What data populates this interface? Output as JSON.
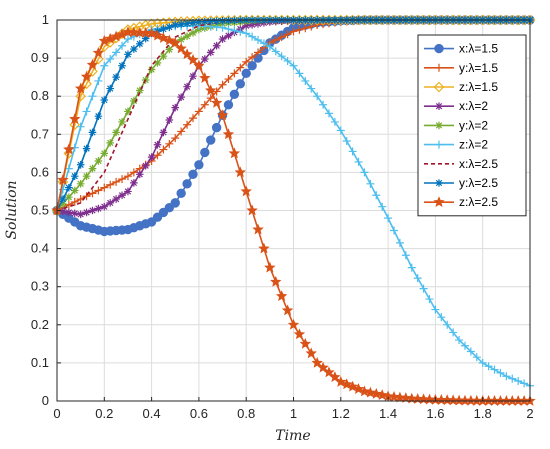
{
  "chart_data": {
    "type": "line",
    "xlabel": "Time",
    "ylabel": "Solution",
    "xlim": [
      0,
      2
    ],
    "ylim": [
      0,
      1
    ],
    "xticks": [
      "0",
      "0.2",
      "0.4",
      "0.6",
      "0.8",
      "1",
      "1.2",
      "1.4",
      "1.6",
      "1.8",
      "2"
    ],
    "yticks": [
      "0",
      "0.1",
      "0.2",
      "0.3",
      "0.4",
      "0.5",
      "0.6",
      "0.7",
      "0.8",
      "0.9",
      "1"
    ],
    "grid": true,
    "legend_position": "top-right",
    "x": [
      0,
      0.1,
      0.2,
      0.3,
      0.4,
      0.5,
      0.6,
      0.7,
      0.8,
      0.9,
      1.0,
      1.1,
      1.2,
      1.3,
      1.4,
      1.5,
      1.6,
      1.7,
      1.8,
      1.9,
      2.0
    ],
    "series": [
      {
        "name": "x:λ=1.5",
        "color": "#4472c4",
        "marker": "circle",
        "dash": "",
        "values": [
          0.5,
          0.46,
          0.445,
          0.45,
          0.47,
          0.52,
          0.62,
          0.75,
          0.86,
          0.94,
          0.98,
          0.993,
          0.998,
          1.0,
          1.0,
          1.0,
          1.0,
          1.0,
          1.0,
          1.0,
          1.0
        ]
      },
      {
        "name": "y:λ=1.5",
        "color": "#d95319",
        "marker": "plus",
        "dash": "",
        "values": [
          0.5,
          0.53,
          0.56,
          0.59,
          0.63,
          0.69,
          0.76,
          0.83,
          0.89,
          0.94,
          0.97,
          0.987,
          0.995,
          0.999,
          1.0,
          1.0,
          1.0,
          1.0,
          1.0,
          1.0,
          1.0
        ]
      },
      {
        "name": "z:λ=1.5",
        "color": "#edb120",
        "marker": "diamond",
        "dash": "",
        "values": [
          0.5,
          0.8,
          0.93,
          0.975,
          0.99,
          0.995,
          0.998,
          0.999,
          1.0,
          1.0,
          1.0,
          1.0,
          1.0,
          1.0,
          1.0,
          1.0,
          1.0,
          1.0,
          1.0,
          1.0,
          1.0
        ]
      },
      {
        "name": "x:λ=2",
        "color": "#7e2f8e",
        "marker": "asterisk",
        "dash": "",
        "values": [
          0.5,
          0.49,
          0.51,
          0.55,
          0.64,
          0.77,
          0.88,
          0.95,
          0.985,
          0.995,
          0.999,
          1.0,
          1.0,
          1.0,
          1.0,
          1.0,
          1.0,
          1.0,
          1.0,
          1.0,
          1.0
        ]
      },
      {
        "name": "y:λ=2",
        "color": "#77ac30",
        "marker": "asterisk",
        "dash": "",
        "values": [
          0.5,
          0.57,
          0.65,
          0.76,
          0.87,
          0.94,
          0.975,
          0.99,
          0.997,
          1.0,
          1.0,
          1.0,
          1.0,
          1.0,
          1.0,
          1.0,
          1.0,
          1.0,
          1.0,
          1.0,
          1.0
        ]
      },
      {
        "name": "z:λ=2",
        "color": "#4dbeee",
        "marker": "plus",
        "dash": "",
        "values": [
          0.5,
          0.72,
          0.88,
          0.95,
          0.975,
          0.983,
          0.985,
          0.98,
          0.965,
          0.93,
          0.88,
          0.8,
          0.71,
          0.6,
          0.48,
          0.35,
          0.24,
          0.16,
          0.1,
          0.065,
          0.04
        ]
      },
      {
        "name": "x:λ=2.5",
        "color": "#a2142f",
        "marker": "none",
        "dash": "4,3",
        "values": [
          0.5,
          0.52,
          0.6,
          0.74,
          0.88,
          0.955,
          0.985,
          0.995,
          1.0,
          1.0,
          1.0,
          1.0,
          1.0,
          1.0,
          1.0,
          1.0,
          1.0,
          1.0,
          1.0,
          1.0,
          1.0
        ]
      },
      {
        "name": "y:λ=2.5",
        "color": "#0072bd",
        "marker": "asterisk",
        "dash": "",
        "values": [
          0.5,
          0.62,
          0.79,
          0.91,
          0.965,
          0.987,
          0.995,
          0.998,
          1.0,
          1.0,
          1.0,
          1.0,
          1.0,
          1.0,
          1.0,
          1.0,
          1.0,
          1.0,
          1.0,
          1.0,
          1.0
        ]
      },
      {
        "name": "z:λ=2.5",
        "color": "#d95319",
        "marker": "star",
        "dash": "",
        "values": [
          0.5,
          0.82,
          0.945,
          0.968,
          0.965,
          0.94,
          0.88,
          0.75,
          0.55,
          0.35,
          0.2,
          0.1,
          0.05,
          0.025,
          0.012,
          0.006,
          0.003,
          0.001,
          0.0,
          0.0,
          0.0
        ]
      }
    ]
  }
}
